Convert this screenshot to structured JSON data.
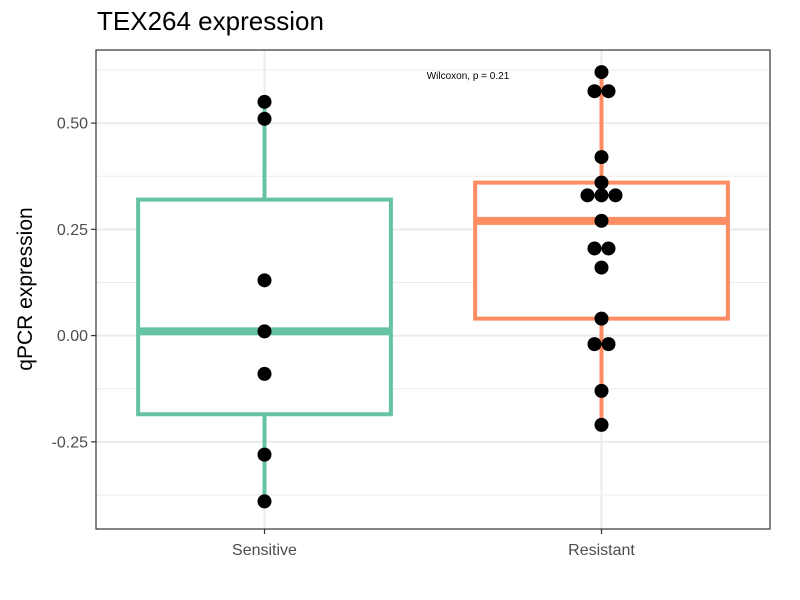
{
  "chart_data": {
    "type": "box",
    "title": "TEX264 expression",
    "ylabel": "qPCR expression",
    "xlabel": "",
    "categories": [
      "Sensitive",
      "Resistant"
    ],
    "y_ticks": [
      -0.25,
      0.0,
      0.25,
      0.5
    ],
    "y_tick_labels": [
      "-0.25",
      "0.00",
      "0.25",
      "0.50"
    ],
    "ylim": [
      -0.455,
      0.672
    ],
    "grid": true,
    "annotation": "Wilcoxon, p = 0.21",
    "series": [
      {
        "category": "Sensitive",
        "color": "#66c2a5",
        "box": {
          "min": -0.39,
          "q1": -0.185,
          "median": 0.01,
          "q3": 0.32,
          "max": 0.55
        },
        "points": [
          0.55,
          0.51,
          0.13,
          0.01,
          -0.09,
          -0.28,
          -0.39
        ]
      },
      {
        "category": "Resistant",
        "color": "#fc8d62",
        "box": {
          "min": -0.21,
          "q1": 0.04,
          "median": 0.27,
          "q3": 0.36,
          "max": 0.62
        },
        "points": [
          0.62,
          0.575,
          0.575,
          0.42,
          0.36,
          0.33,
          0.33,
          0.33,
          0.27,
          0.205,
          0.205,
          0.16,
          0.04,
          -0.02,
          -0.02,
          -0.13,
          -0.21
        ]
      }
    ]
  }
}
